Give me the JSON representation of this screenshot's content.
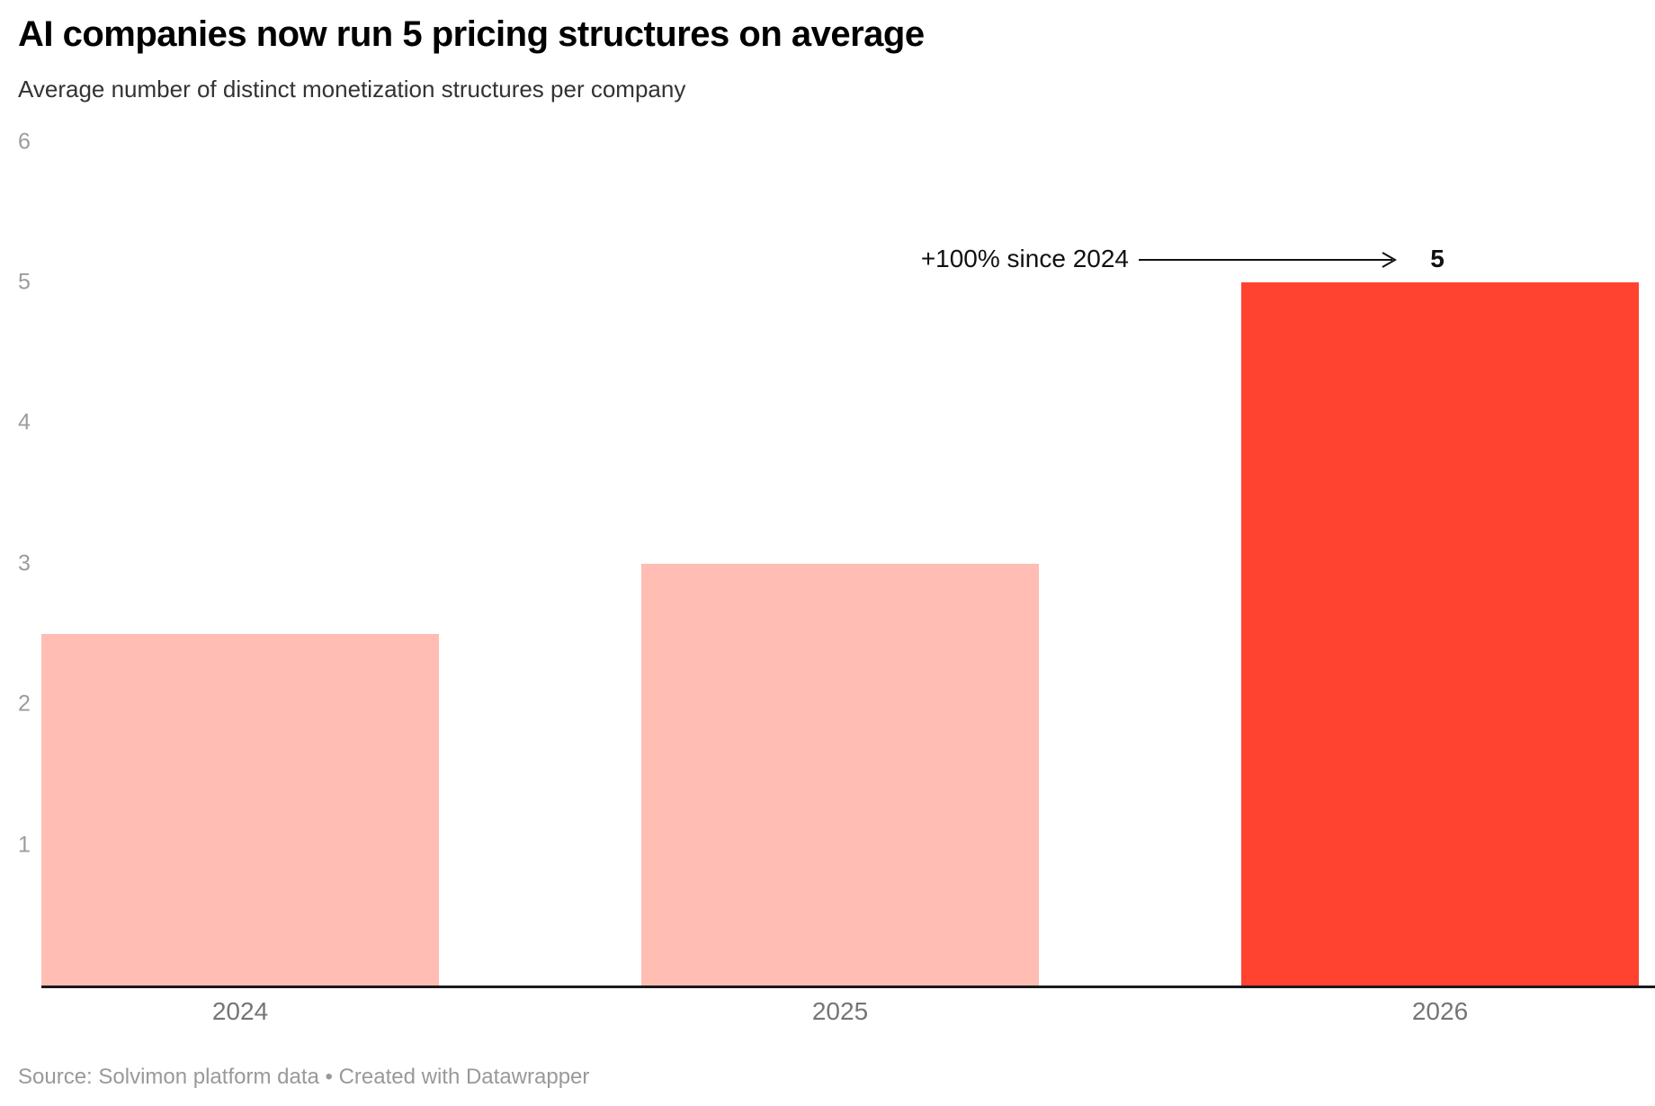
{
  "header": {
    "title": "AI companies now run 5 pricing structures on average",
    "subtitle": "Average number of distinct monetization structures per company"
  },
  "chart_data": {
    "type": "bar",
    "title": "AI companies now run 5 pricing structures on average",
    "subtitle": "Average number of distinct monetization structures per company",
    "categories": [
      "2024",
      "2025",
      "2026"
    ],
    "values": [
      2.5,
      3,
      5
    ],
    "bar_colors": [
      "#ffbdb4",
      "#ffbdb4",
      "#ff4330"
    ],
    "highlight_index": 2,
    "xlabel": "",
    "ylabel": "",
    "ylim": [
      0,
      6
    ],
    "y_ticks": [
      1,
      2,
      3,
      4,
      5,
      6
    ],
    "grid": false,
    "legend": "none",
    "annotation": {
      "text": "+100% since 2024",
      "value_label": "5",
      "points_to_category": "2026"
    }
  },
  "colors": {
    "bar_default": "#ffbdb4",
    "bar_highlight": "#ff4330",
    "axis_line": "#1a1a1a",
    "tick_label": "#9c9c9c",
    "x_label": "#757575"
  },
  "footer": {
    "source_text": "Source: Solvimon platform data",
    "separator": "•",
    "attribution": "Created with Datawrapper"
  }
}
